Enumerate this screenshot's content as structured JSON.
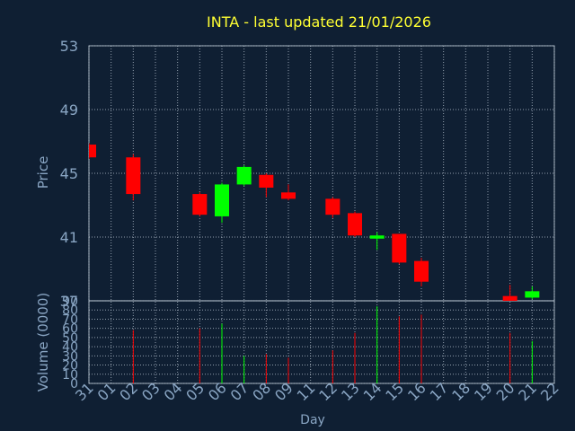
{
  "title": "INTA - last updated 21/01/2026",
  "colors": {
    "background": "#0f1f33",
    "title": "#ffff33",
    "axis_text": "#8aa6c4",
    "grid": "#c8d4e0",
    "up": "#00ff00",
    "down": "#ff0000"
  },
  "chart_data": [
    {
      "type": "candlestick",
      "ylabel": "Price",
      "ylim": [
        37,
        53
      ],
      "yticks": [
        37,
        41,
        45,
        49,
        53
      ],
      "grid": true,
      "candles": [
        {
          "x": "31",
          "open": 46.8,
          "close": 46.0,
          "high": 46.9,
          "low": 45.9
        },
        {
          "x": "02",
          "open": 46.0,
          "close": 43.7,
          "high": 46.2,
          "low": 43.3
        },
        {
          "x": "05",
          "open": 43.7,
          "close": 42.4,
          "high": 43.8,
          "low": 42.3
        },
        {
          "x": "06",
          "open": 42.3,
          "close": 44.3,
          "high": 44.4,
          "low": 41.9
        },
        {
          "x": "07",
          "open": 44.3,
          "close": 45.4,
          "high": 45.5,
          "low": 44.2
        },
        {
          "x": "08",
          "open": 44.9,
          "close": 44.1,
          "high": 45.0,
          "low": 43.5
        },
        {
          "x": "09",
          "open": 43.8,
          "close": 43.4,
          "high": 44.3,
          "low": 43.3
        },
        {
          "x": "12",
          "open": 43.4,
          "close": 42.4,
          "high": 43.5,
          "low": 42.2
        },
        {
          "x": "13",
          "open": 42.5,
          "close": 41.1,
          "high": 42.6,
          "low": 41.0
        },
        {
          "x": "14",
          "open": 40.9,
          "close": 41.1,
          "high": 41.3,
          "low": 40.2
        },
        {
          "x": "15",
          "open": 41.2,
          "close": 39.4,
          "high": 41.2,
          "low": 39.3
        },
        {
          "x": "16",
          "open": 39.5,
          "close": 38.2,
          "high": 39.7,
          "low": 37.9
        },
        {
          "x": "20",
          "open": 37.3,
          "close": 36.9,
          "high": 38.0,
          "low": 36.9
        },
        {
          "x": "21",
          "open": 37.2,
          "close": 37.6,
          "high": 37.9,
          "low": 37.1
        }
      ]
    },
    {
      "type": "bar",
      "ylabel": "Volume (0000)",
      "xlabel": "Day",
      "ylim": [
        0,
        90
      ],
      "yticks": [
        0,
        10,
        20,
        30,
        40,
        50,
        60,
        70,
        80,
        90
      ],
      "categories": [
        "31",
        "01",
        "02",
        "03",
        "04",
        "05",
        "06",
        "07",
        "08",
        "09",
        "11",
        "12",
        "13",
        "14",
        "15",
        "16",
        "17",
        "18",
        "19",
        "20",
        "21",
        "22"
      ],
      "volumes": [
        {
          "x": "02",
          "value": 58,
          "dir": "down"
        },
        {
          "x": "05",
          "value": 60,
          "dir": "down"
        },
        {
          "x": "06",
          "value": 65,
          "dir": "up"
        },
        {
          "x": "07",
          "value": 30,
          "dir": "up"
        },
        {
          "x": "08",
          "value": 32,
          "dir": "down"
        },
        {
          "x": "09",
          "value": 28,
          "dir": "down"
        },
        {
          "x": "12",
          "value": 36,
          "dir": "down"
        },
        {
          "x": "13",
          "value": 55,
          "dir": "down"
        },
        {
          "x": "14",
          "value": 84,
          "dir": "up"
        },
        {
          "x": "15",
          "value": 73,
          "dir": "down"
        },
        {
          "x": "16",
          "value": 75,
          "dir": "down"
        },
        {
          "x": "20",
          "value": 55,
          "dir": "down"
        },
        {
          "x": "21",
          "value": 46,
          "dir": "up"
        }
      ]
    }
  ]
}
